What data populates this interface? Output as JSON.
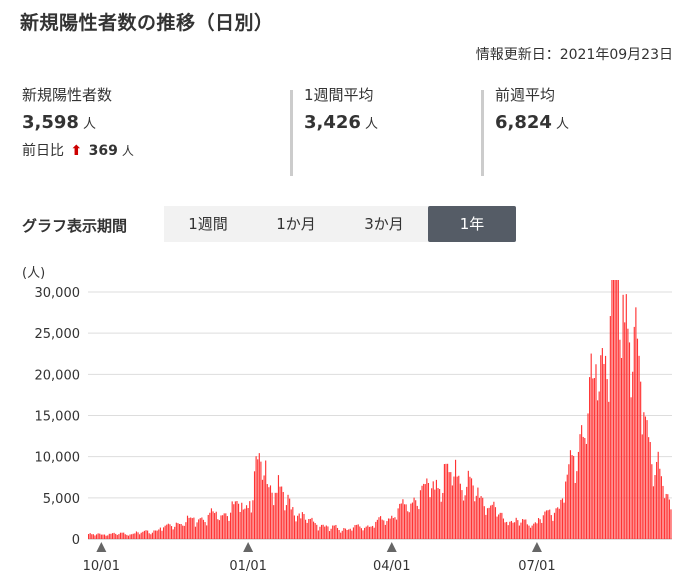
{
  "header": {
    "title": "新規陽性者数の推移（日別）",
    "updated": "情報更新日：2021年09月23日"
  },
  "stats": {
    "new_cases": {
      "label": "新規陽性者数",
      "value": "3,598",
      "unit": "人",
      "diff_label": "前日比",
      "diff_arrow": "⬆",
      "diff_value": "369",
      "diff_unit": "人"
    },
    "week_avg": {
      "label": "1週間平均",
      "value": "3,426",
      "unit": "人"
    },
    "prev_week_avg": {
      "label": "前週平均",
      "value": "6,824",
      "unit": "人"
    }
  },
  "period": {
    "label": "グラフ表示期間",
    "tabs": [
      "1週間",
      "1か月",
      "3か月",
      "1年"
    ],
    "active_index": 3
  },
  "colors": {
    "bar": "#ff3333",
    "arrow": "#cc0000",
    "tab_active": "#555c66",
    "grid": "#dddddd"
  },
  "chart_data": {
    "type": "bar",
    "unit_label": "(人)",
    "ylim": [
      0,
      30000
    ],
    "yticks": [
      0,
      5000,
      10000,
      15000,
      20000,
      25000,
      30000
    ],
    "ytick_labels": [
      "0",
      "5,000",
      "10,000",
      "15,000",
      "20,000",
      "25,000",
      "30,000"
    ],
    "x_start": "2020-09-23",
    "x_end": "2021-09-23",
    "xticks": [
      "2020-10-01",
      "2021-01-01",
      "2021-04-01",
      "2021-07-01"
    ],
    "xtick_labels": [
      "10/01",
      "01/01",
      "04/01",
      "07/01"
    ],
    "grid": true,
    "series": [
      {
        "anchors": [
          [
            "2020-09-23",
            480
          ],
          [
            "2020-10-15",
            550
          ],
          [
            "2020-11-01",
            750
          ],
          [
            "2020-11-15",
            1600
          ],
          [
            "2020-12-01",
            2300
          ],
          [
            "2020-12-15",
            2800
          ],
          [
            "2021-01-01",
            3800
          ],
          [
            "2021-01-08",
            7900
          ],
          [
            "2021-01-15",
            6200
          ],
          [
            "2021-01-25",
            4000
          ],
          [
            "2021-02-05",
            2200
          ],
          [
            "2021-02-20",
            1200
          ],
          [
            "2021-03-05",
            1100
          ],
          [
            "2021-03-20",
            1500
          ],
          [
            "2021-04-01",
            2500
          ],
          [
            "2021-04-15",
            4200
          ],
          [
            "2021-04-25",
            5600
          ],
          [
            "2021-05-08",
            6900
          ],
          [
            "2021-05-15",
            6500
          ],
          [
            "2021-05-25",
            4800
          ],
          [
            "2021-06-10",
            2200
          ],
          [
            "2021-06-25",
            1700
          ],
          [
            "2021-07-01",
            1900
          ],
          [
            "2021-07-15",
            3500
          ],
          [
            "2021-07-25",
            9000
          ],
          [
            "2021-08-05",
            15500
          ],
          [
            "2021-08-15",
            22000
          ],
          [
            "2021-08-20",
            25800
          ],
          [
            "2021-08-27",
            24000
          ],
          [
            "2021-09-03",
            17000
          ],
          [
            "2021-09-10",
            10500
          ],
          [
            "2021-09-17",
            6000
          ],
          [
            "2021-09-23",
            3600
          ]
        ]
      }
    ]
  }
}
